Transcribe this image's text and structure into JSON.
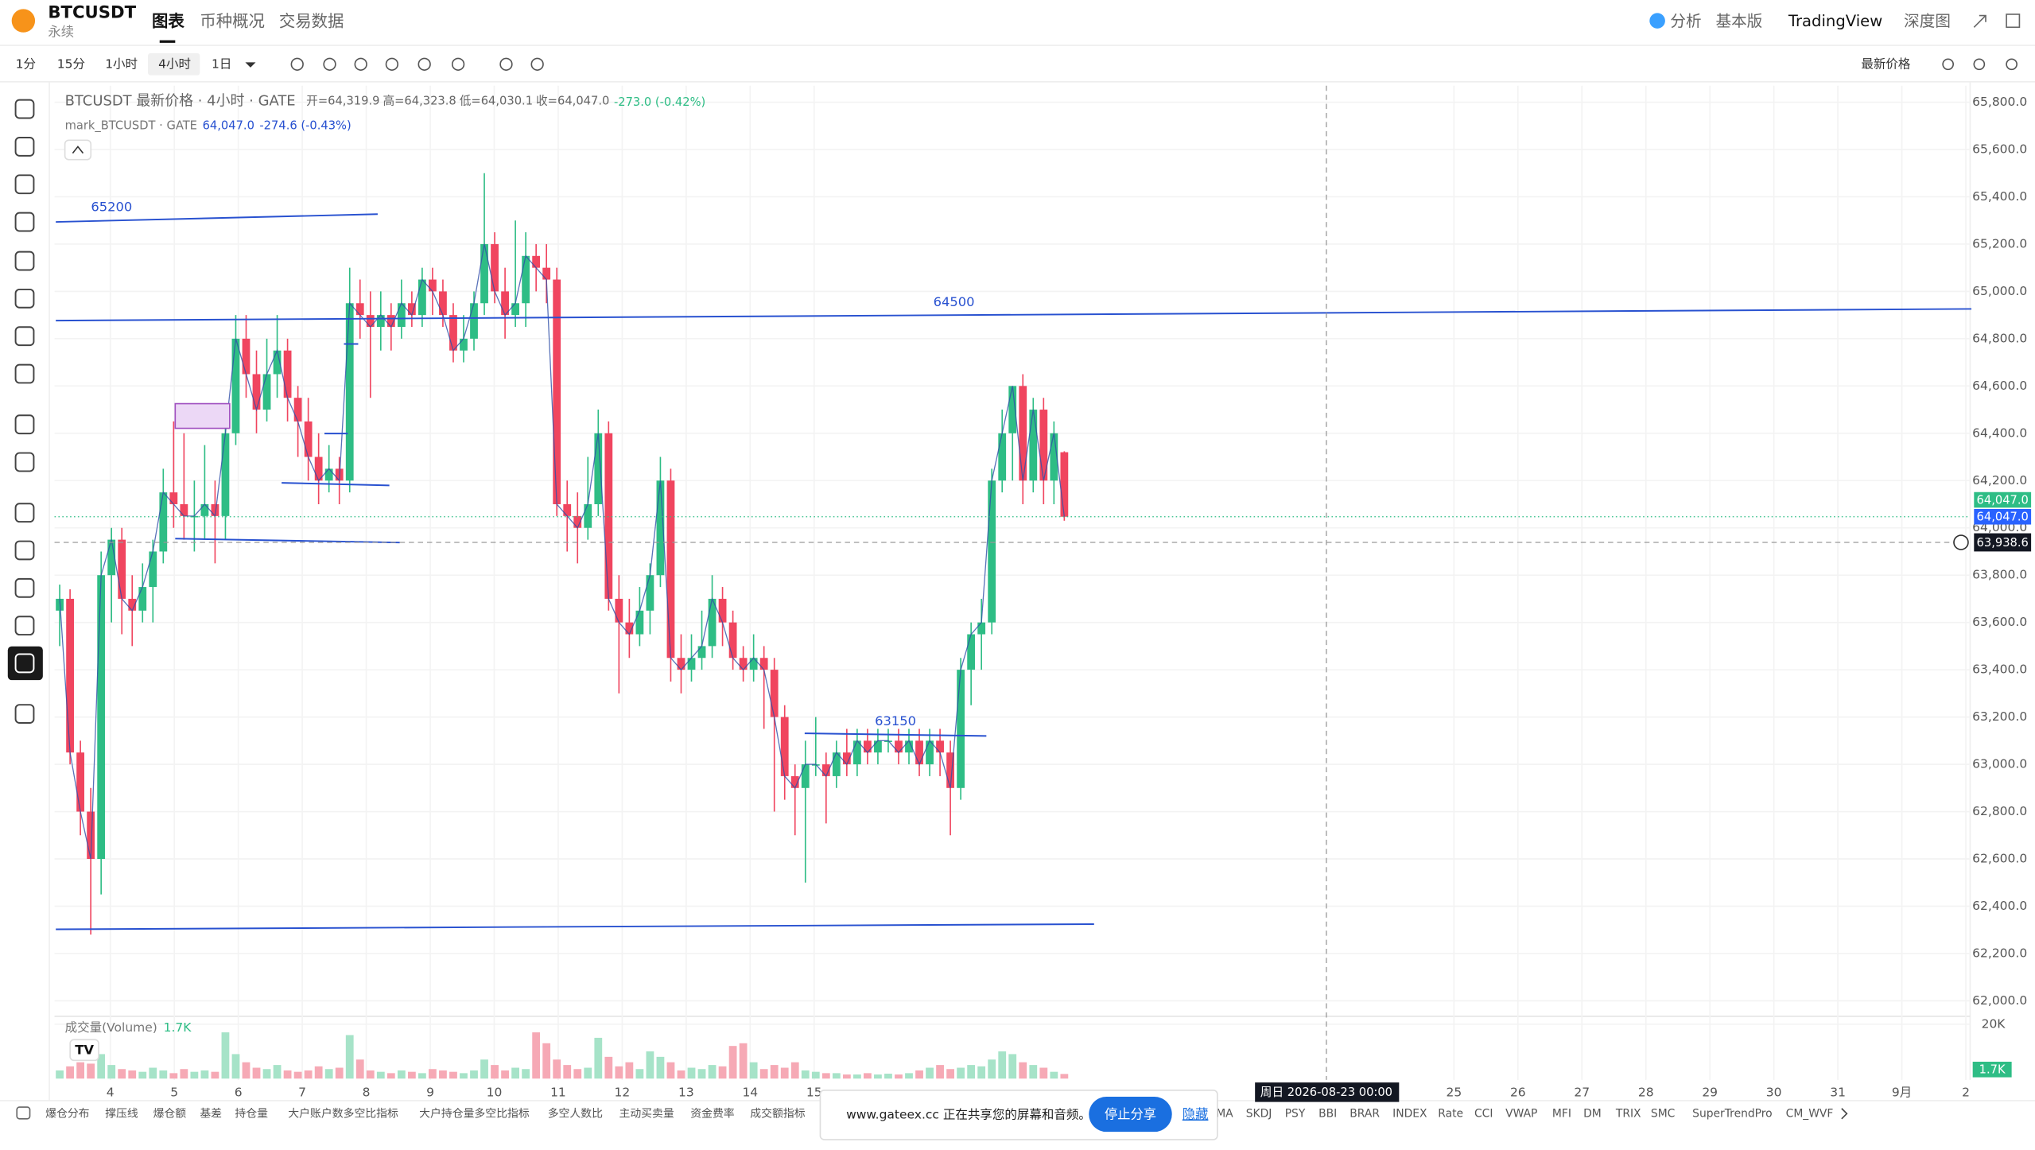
{
  "header": {
    "symbol": "BTCUSDT",
    "contract": "永续",
    "tabs": [
      "图表",
      "币种概况",
      "交易数据"
    ],
    "right": [
      "分析",
      "基本版",
      "TradingView",
      "深度图"
    ]
  },
  "toolbar": {
    "intervals": [
      "1分",
      "15分",
      "1小时",
      "4小时",
      "1日"
    ],
    "price_source": "最新价格"
  },
  "legend": {
    "title": "BTCUSDT 最新价格 · 4小时 · GATE",
    "open": "开=64,319.9",
    "high": "高=64,323.8",
    "low": "低=64,030.1",
    "close": "收=64,047.0",
    "change": "-273.0 (-0.42%)",
    "mark_title": "mark_BTCUSDT · GATE",
    "mark_price": "64,047.0",
    "mark_change": "-274.6 (-0.43%)"
  },
  "chart_data": {
    "type": "candlestick",
    "up_color": "#2ebd85",
    "down_color": "#f0455f",
    "grid": true,
    "ylim": [
      61940,
      65870
    ],
    "yticks": [
      {
        "value": 65800,
        "label": "65,800.0"
      },
      {
        "value": 65600,
        "label": "65,600.0"
      },
      {
        "value": 65400,
        "label": "65,400.0"
      },
      {
        "value": 65200,
        "label": "65,200.0"
      },
      {
        "value": 65000,
        "label": "65,000.0"
      },
      {
        "value": 64800,
        "label": "64,800.0"
      },
      {
        "value": 64600,
        "label": "64,600.0"
      },
      {
        "value": 64400,
        "label": "64,400.0"
      },
      {
        "value": 64200,
        "label": "64,200.0"
      },
      {
        "value": 64000,
        "label": "64,000.0"
      },
      {
        "value": 63800,
        "label": "63,800.0"
      },
      {
        "value": 63600,
        "label": "63,600.0"
      },
      {
        "value": 63400,
        "label": "63,400.0"
      },
      {
        "value": 63200,
        "label": "63,200.0"
      },
      {
        "value": 63000,
        "label": "63,000.0"
      },
      {
        "value": 62800,
        "label": "62,800.0"
      },
      {
        "value": 62600,
        "label": "62,600.0"
      },
      {
        "value": 62400,
        "label": "62,400.0"
      },
      {
        "value": 62200,
        "label": "62,200.0"
      },
      {
        "value": 62000,
        "label": "62,000.0"
      }
    ],
    "xticks": [
      4,
      5,
      6,
      7,
      8,
      9,
      10,
      11,
      12,
      13,
      14,
      15,
      25,
      26,
      27,
      28,
      29,
      30,
      31,
      {
        "value": 32,
        "label": "9月"
      },
      {
        "value": 33,
        "label": "2"
      }
    ],
    "candles": [
      [
        63650,
        63760,
        63500,
        63700
      ],
      [
        63700,
        63740,
        63000,
        63050
      ],
      [
        63050,
        63100,
        62700,
        62800
      ],
      [
        62800,
        62900,
        62280,
        62600
      ],
      [
        62600,
        63900,
        62450,
        63800
      ],
      [
        63800,
        64000,
        63600,
        63950
      ],
      [
        63950,
        64000,
        63550,
        63700
      ],
      [
        63700,
        63800,
        63500,
        63650
      ],
      [
        63650,
        63850,
        63600,
        63750
      ],
      [
        63750,
        63950,
        63600,
        63900
      ],
      [
        63900,
        64250,
        63850,
        64150
      ],
      [
        64150,
        64450,
        64000,
        64100
      ],
      [
        64100,
        64400,
        63950,
        64050
      ],
      [
        64050,
        64200,
        63900,
        64050
      ],
      [
        64050,
        64350,
        63950,
        64100
      ],
      [
        64100,
        64200,
        63850,
        64050
      ],
      [
        64050,
        64500,
        63950,
        64400
      ],
      [
        64400,
        64900,
        64350,
        64800
      ],
      [
        64800,
        64900,
        64550,
        64650
      ],
      [
        64650,
        64750,
        64400,
        64500
      ],
      [
        64500,
        64800,
        64450,
        64650
      ],
      [
        64650,
        64900,
        64550,
        64750
      ],
      [
        64750,
        64800,
        64450,
        64550
      ],
      [
        64550,
        64600,
        64300,
        64450
      ],
      [
        64450,
        64550,
        64200,
        64300
      ],
      [
        64300,
        64400,
        64100,
        64200
      ],
      [
        64200,
        64350,
        64150,
        64250
      ],
      [
        64250,
        64300,
        64100,
        64200
      ],
      [
        64200,
        65100,
        64150,
        64950
      ],
      [
        64950,
        65050,
        64800,
        64900
      ],
      [
        64900,
        65000,
        64550,
        64850
      ],
      [
        64850,
        65000,
        64750,
        64900
      ],
      [
        64900,
        64950,
        64750,
        64850
      ],
      [
        64850,
        65050,
        64800,
        64950
      ],
      [
        64950,
        65000,
        64850,
        64900
      ],
      [
        64900,
        65100,
        64850,
        65050
      ],
      [
        65050,
        65100,
        64900,
        65000
      ],
      [
        65000,
        65050,
        64850,
        64900
      ],
      [
        64900,
        64950,
        64700,
        64750
      ],
      [
        64750,
        64900,
        64700,
        64800
      ],
      [
        64800,
        65000,
        64750,
        64950
      ],
      [
        64950,
        65500,
        64900,
        65200
      ],
      [
        65200,
        65250,
        64950,
        65000
      ],
      [
        65000,
        65100,
        64800,
        64900
      ],
      [
        64900,
        65300,
        64850,
        64950
      ],
      [
        64950,
        65250,
        64850,
        65150
      ],
      [
        65150,
        65200,
        65000,
        65100
      ],
      [
        65100,
        65200,
        64950,
        65050
      ],
      [
        65050,
        65100,
        64050,
        64100
      ],
      [
        64100,
        64200,
        63900,
        64050
      ],
      [
        64050,
        64150,
        63850,
        64000
      ],
      [
        64000,
        64300,
        63950,
        64100
      ],
      [
        64100,
        64500,
        64050,
        64400
      ],
      [
        64400,
        64450,
        63650,
        63700
      ],
      [
        63700,
        63800,
        63300,
        63600
      ],
      [
        63600,
        63700,
        63450,
        63550
      ],
      [
        63550,
        63750,
        63500,
        63650
      ],
      [
        63650,
        63850,
        63550,
        63800
      ],
      [
        63800,
        64300,
        63750,
        64200
      ],
      [
        64200,
        64250,
        63350,
        63450
      ],
      [
        63450,
        63550,
        63300,
        63400
      ],
      [
        63400,
        63550,
        63350,
        63450
      ],
      [
        63450,
        63650,
        63400,
        63500
      ],
      [
        63500,
        63800,
        63450,
        63700
      ],
      [
        63700,
        63750,
        63500,
        63600
      ],
      [
        63600,
        63650,
        63400,
        63450
      ],
      [
        63450,
        63500,
        63350,
        63400
      ],
      [
        63400,
        63550,
        63350,
        63450
      ],
      [
        63450,
        63500,
        63150,
        63400
      ],
      [
        63400,
        63450,
        62800,
        63200
      ],
      [
        63200,
        63250,
        62850,
        62950
      ],
      [
        62950,
        63000,
        62700,
        62900
      ],
      [
        62900,
        63100,
        62500,
        63000
      ],
      [
        63000,
        63200,
        62950,
        63000
      ],
      [
        63000,
        63050,
        62750,
        62950
      ],
      [
        62950,
        63100,
        62900,
        63050
      ],
      [
        63050,
        63150,
        62950,
        63000
      ],
      [
        63000,
        63150,
        62950,
        63100
      ],
      [
        63100,
        63150,
        63000,
        63050
      ],
      [
        63050,
        63150,
        63000,
        63100
      ],
      [
        63100,
        63150,
        63050,
        63100
      ],
      [
        63100,
        63150,
        63000,
        63050
      ],
      [
        63050,
        63150,
        63000,
        63100
      ],
      [
        63100,
        63150,
        62950,
        63000
      ],
      [
        63000,
        63150,
        62950,
        63100
      ],
      [
        63100,
        63150,
        62950,
        63050
      ],
      [
        63050,
        63100,
        62700,
        62900
      ],
      [
        62900,
        63450,
        62850,
        63400
      ],
      [
        63400,
        63600,
        63250,
        63550
      ],
      [
        63550,
        63700,
        63400,
        63600
      ],
      [
        63600,
        64250,
        63550,
        64200
      ],
      [
        64200,
        64500,
        64150,
        64400
      ],
      [
        64400,
        64600,
        64200,
        64600
      ],
      [
        64600,
        64650,
        64100,
        64200
      ],
      [
        64200,
        64550,
        64150,
        64500
      ],
      [
        64500,
        64550,
        64100,
        64200
      ],
      [
        64200,
        64450,
        64100,
        64400
      ],
      [
        64319.9,
        64323.8,
        64030.1,
        64047.0
      ]
    ],
    "price_tags": [
      {
        "value": 64047.0,
        "label": "64,047.0",
        "color": "#2ebd85"
      },
      {
        "value": 64047.0,
        "label": "64,047.0",
        "color": "#2962ff"
      }
    ],
    "crosshair": {
      "date_label": "周日 2026-08-23  00:00",
      "price": {
        "value": 63938.6,
        "label": "63,938.6"
      }
    },
    "drawings": [
      "65200",
      "64500",
      "63150"
    ],
    "volume": {
      "name": "成交量(Volume)",
      "last_label": "1.7K",
      "ylim": [
        0,
        21000
      ],
      "yticks": [
        {
          "value": 20000,
          "label": "20K"
        }
      ],
      "up_color": "#a6e3c8",
      "down_color": "#f6a9b5",
      "values": [
        3000,
        4500,
        6000,
        5500,
        9000,
        5000,
        3500,
        3000,
        2500,
        4000,
        3000,
        2000,
        3500,
        2500,
        3000,
        2500,
        17000,
        9000,
        6000,
        4000,
        3500,
        5000,
        3000,
        2500,
        3000,
        4500,
        3500,
        4000,
        16000,
        7000,
        3000,
        2500,
        2000,
        3000,
        2500,
        2000,
        3500,
        3000,
        2500,
        2000,
        3000,
        7000,
        5000,
        3000,
        4000,
        3500,
        17000,
        13000,
        7000,
        5000,
        3500,
        4000,
        15000,
        8000,
        4500,
        6000,
        3500,
        10000,
        8000,
        6000,
        3000,
        4000,
        3500,
        5000,
        4500,
        12000,
        13000,
        6000,
        3500,
        5000,
        4000,
        6000,
        3000,
        2500,
        2000,
        2000,
        1500,
        1500,
        2000,
        1500,
        1800,
        1500,
        2000,
        3000,
        4000,
        5000,
        3500,
        4000,
        5000,
        4500,
        7000,
        10000,
        9000,
        6000,
        5000,
        4000,
        2500,
        1700
      ]
    }
  },
  "indicators": {
    "left": [
      "爆仓分布",
      "撑压线",
      "爆仓额",
      "基差",
      "持仓量",
      "大户账户数多空比指标",
      "大户持仓量多空比指标",
      "多空人数比",
      "主动买卖量",
      "资金费率",
      "成交额指标"
    ],
    "right": [
      "MA",
      "SKDJ",
      "PSY",
      "BBI",
      "BRAR",
      "INDEX",
      "Rate",
      "CCI",
      "VWAP",
      "MFI",
      "DM",
      "TRIX",
      "SMC",
      "SuperTrendPro",
      "CM_WVF"
    ]
  },
  "share_popup": {
    "message": "www.gateex.cc 正在共享您的屏幕和音频。",
    "stop": "停止分享",
    "hide": "隐藏"
  }
}
